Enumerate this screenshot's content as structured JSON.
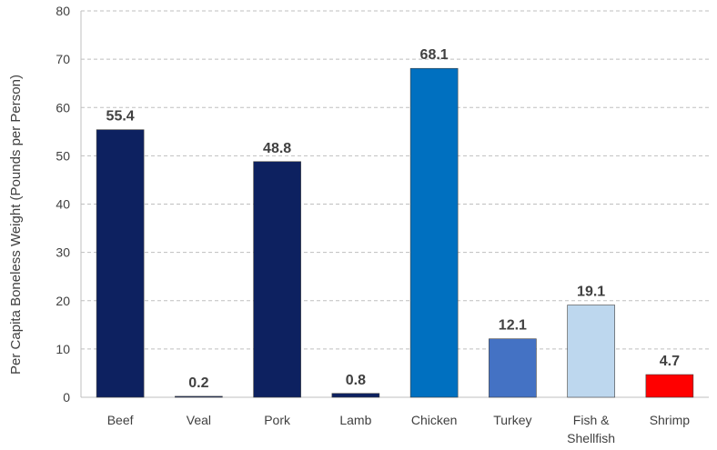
{
  "chart_data": {
    "type": "bar",
    "categories": [
      "Beef",
      "Veal",
      "Pork",
      "Lamb",
      "Chicken",
      "Turkey",
      "Fish & Shellfish",
      "Shrimp"
    ],
    "category_lines": [
      [
        "Beef"
      ],
      [
        "Veal"
      ],
      [
        "Pork"
      ],
      [
        "Lamb"
      ],
      [
        "Chicken"
      ],
      [
        "Turkey"
      ],
      [
        "Fish &",
        "Shellfish"
      ],
      [
        "Shrimp"
      ]
    ],
    "values": [
      55.4,
      0.2,
      48.8,
      0.8,
      68.1,
      12.1,
      19.1,
      4.7
    ],
    "data_labels": [
      "55.4",
      "0.2",
      "48.8",
      "0.8",
      "68.1",
      "12.1",
      "19.1",
      "4.7"
    ],
    "bar_colors": [
      "#0d2160",
      "#0d2160",
      "#0d2160",
      "#0d2160",
      "#0070c0",
      "#4472c4",
      "#bdd7ee",
      "#ff0000"
    ],
    "title": "",
    "xlabel": "",
    "ylabel": "Per Capita Boneless Weight (Pounds per Person)",
    "ylim": [
      0,
      80
    ],
    "yticks": [
      0,
      10,
      20,
      30,
      40,
      50,
      60,
      70,
      80
    ],
    "grid": "dashed horizontal",
    "legend": "none"
  }
}
